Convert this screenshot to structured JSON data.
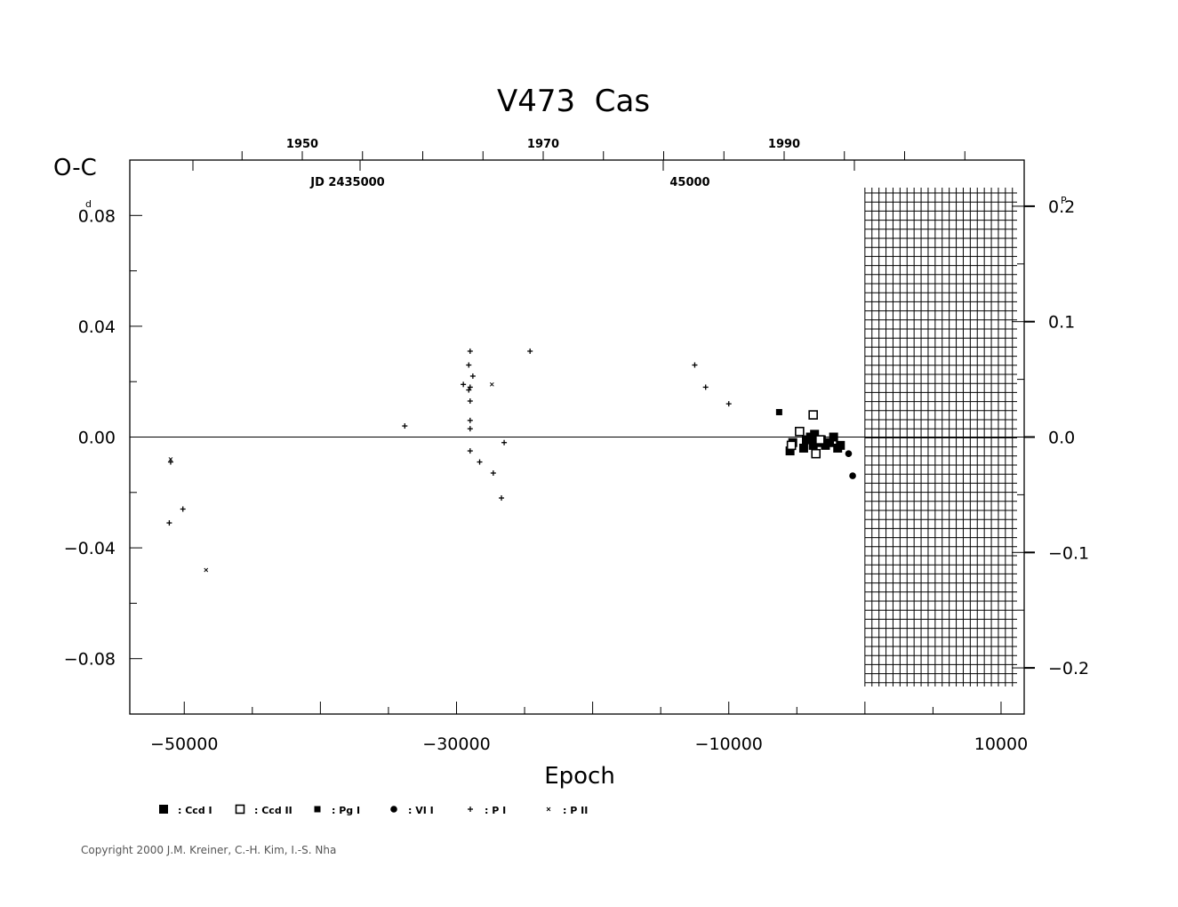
{
  "chart_data": {
    "type": "scatter",
    "title": "V473  Cas",
    "xlabel": "Epoch",
    "ylabel": "O-C",
    "y_unit_label": "d",
    "right_axis_unit_label": "P",
    "xlim": [
      -54000,
      11700
    ],
    "ylim": [
      -0.1,
      0.1
    ],
    "x_ticks": [
      -50000,
      -30000,
      -10000,
      10000
    ],
    "x_tick_labels": [
      "−50000",
      "−30000",
      "−10000",
      "10000"
    ],
    "y_ticks": [
      0.08,
      0.04,
      0.0,
      -0.04,
      -0.08
    ],
    "y_tick_labels": [
      "0.08",
      "0.04",
      "0.00",
      "−0.04",
      "−0.08"
    ],
    "right_ticks": [
      0.2,
      0.1,
      0.0,
      -0.1,
      -0.2
    ],
    "right_tick_labels": [
      "0.2",
      "0.1",
      "0.0",
      "−0.1",
      "−0.2"
    ],
    "right_axis_per_unit": 2.4,
    "top_year_ticks": [
      1950,
      1970,
      1990
    ],
    "top_year_labels": [
      "1950",
      "1970",
      "1990"
    ],
    "top_jd_labels": [
      "JD  2435000",
      "45000"
    ],
    "reference_line_y": 0.0,
    "hatched_region_x": [
      0,
      11700
    ],
    "series": [
      {
        "name": ": Ccd  I",
        "marker": "filled-square",
        "points": [
          [
            -5500,
            -0.005
          ],
          [
            -5300,
            -0.002
          ],
          [
            -4500,
            -0.004
          ],
          [
            -4300,
            -0.001
          ],
          [
            -4000,
            0.0
          ],
          [
            -3800,
            -0.003
          ],
          [
            -3700,
            0.001
          ],
          [
            -3500,
            -0.002
          ],
          [
            -3200,
            -0.001
          ],
          [
            -2900,
            -0.003
          ],
          [
            -2600,
            -0.002
          ],
          [
            -2300,
            0.0
          ],
          [
            -2000,
            -0.004
          ],
          [
            -1800,
            -0.003
          ]
        ]
      },
      {
        "name": ": Ccd  II",
        "marker": "open-square",
        "points": [
          [
            -5400,
            -0.003
          ],
          [
            -4800,
            0.002
          ],
          [
            -3800,
            0.008
          ],
          [
            -3600,
            -0.006
          ],
          [
            -3300,
            -0.001
          ]
        ]
      },
      {
        "name": ": Pg  I",
        "marker": "small-filled-square",
        "points": [
          [
            -6300,
            0.009
          ]
        ]
      },
      {
        "name": ": VI  I",
        "marker": "filled-circle",
        "points": [
          [
            -1200,
            -0.006
          ],
          [
            -900,
            -0.014
          ]
        ]
      },
      {
        "name": ": P  I",
        "marker": "plus",
        "points": [
          [
            -51100,
            -0.031
          ],
          [
            -50100,
            -0.026
          ],
          [
            -51000,
            -0.009
          ],
          [
            -33800,
            0.004
          ],
          [
            -29500,
            0.019
          ],
          [
            -29000,
            0.031
          ],
          [
            -29100,
            0.026
          ],
          [
            -28800,
            0.022
          ],
          [
            -29000,
            0.018
          ],
          [
            -29100,
            0.017
          ],
          [
            -29000,
            0.013
          ],
          [
            -29000,
            0.006
          ],
          [
            -29000,
            0.003
          ],
          [
            -29000,
            -0.005
          ],
          [
            -28300,
            -0.009
          ],
          [
            -27300,
            -0.013
          ],
          [
            -26700,
            -0.022
          ],
          [
            -26500,
            -0.002
          ],
          [
            -24600,
            0.031
          ],
          [
            -12500,
            0.026
          ],
          [
            -11700,
            0.018
          ],
          [
            -10000,
            0.012
          ]
        ]
      },
      {
        "name": ": P  II",
        "marker": "cross",
        "points": [
          [
            -51000,
            -0.008
          ],
          [
            -48400,
            -0.048
          ],
          [
            -27400,
            0.019
          ]
        ]
      }
    ]
  },
  "copyright": "Copyright 2000 J.M. Kreiner, C.-H. Kim, I.-S. Nha"
}
